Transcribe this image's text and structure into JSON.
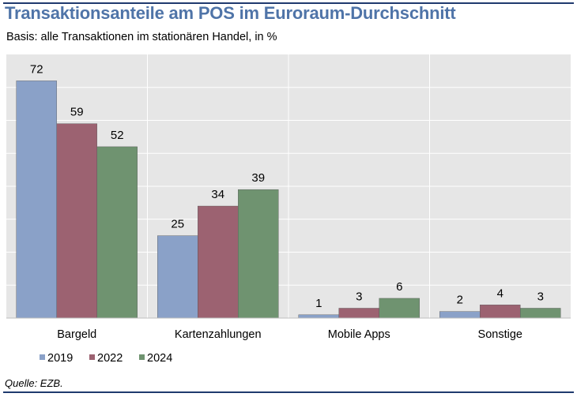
{
  "header": {
    "title": "Transaktionsanteile am POS im Euroraum-Durchschnitt",
    "subtitle": "Basis: alle Transaktionen im stationären Handel, in %"
  },
  "footer": {
    "source": "Quelle: EZB."
  },
  "colors": {
    "series_2019": "#8aa1c8",
    "series_2022": "#9c6271",
    "series_2024": "#6f9370",
    "plot_background": "#e6e6e6",
    "grid": "#ffffff",
    "rules": "#1f3a6e"
  },
  "chart_data": {
    "type": "bar",
    "categories": [
      "Bargeld",
      "Kartenzahlungen",
      "Mobile Apps",
      "Sonstige"
    ],
    "series": [
      {
        "name": "2019",
        "values": [
          72,
          25,
          1,
          2
        ]
      },
      {
        "name": "2022",
        "values": [
          59,
          34,
          3,
          4
        ]
      },
      {
        "name": "2024",
        "values": [
          52,
          39,
          6,
          3
        ]
      }
    ],
    "ylim": [
      0,
      80
    ],
    "y_axis_labels_shown": false,
    "grid": true,
    "data_labels": true,
    "legend_placement": "bottom-left"
  }
}
